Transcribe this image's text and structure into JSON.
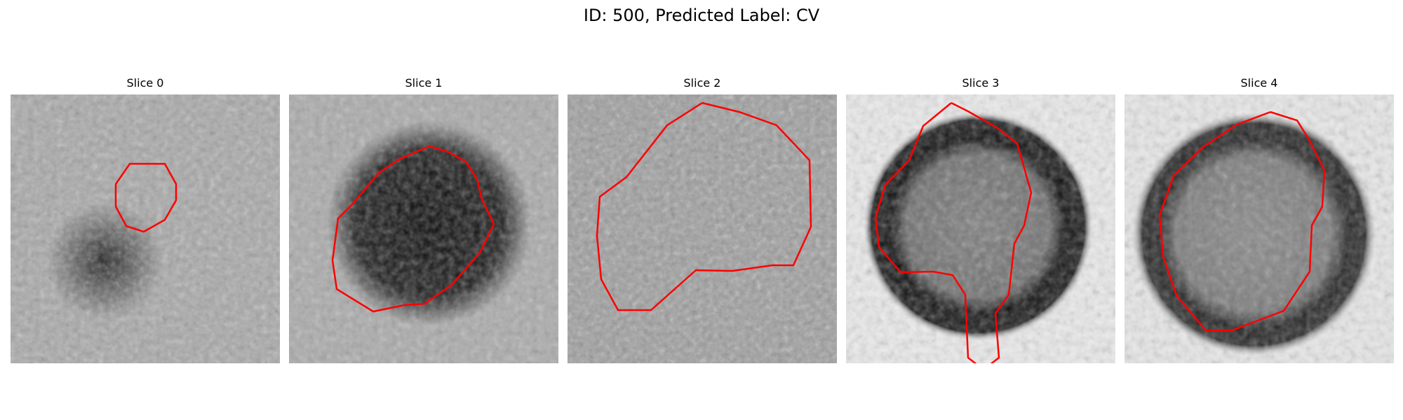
{
  "figure": {
    "title": "ID: 500, Predicted Label: CV"
  },
  "panels": [
    {
      "title": "Slice 0"
    },
    {
      "title": "Slice 1"
    },
    {
      "title": "Slice 2"
    },
    {
      "title": "Slice 3"
    },
    {
      "title": "Slice 4"
    }
  ],
  "colors": {
    "background": "#ffffff",
    "contour": "#ff0000",
    "colormap": "grayscale"
  }
}
